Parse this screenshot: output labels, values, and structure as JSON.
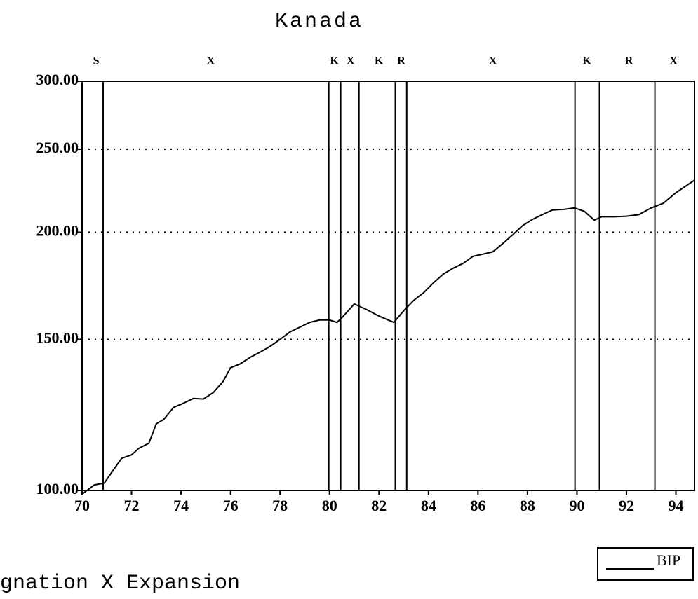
{
  "chart_data": {
    "type": "line",
    "title": "Kanada",
    "series": [
      {
        "name": "BIP",
        "color": "#000000",
        "x": [
          1970.0,
          1970.5,
          1970.9,
          1971.3,
          1971.6,
          1972.0,
          1972.3,
          1972.7,
          1973.0,
          1973.3,
          1973.7,
          1974.0,
          1974.5,
          1974.9,
          1975.3,
          1975.7,
          1976.0,
          1976.4,
          1976.8,
          1977.2,
          1977.6,
          1978.0,
          1978.4,
          1978.8,
          1979.2,
          1979.6,
          1980.0,
          1980.3,
          1980.5,
          1981.0,
          1981.5,
          1982.0,
          1982.6,
          1983.0,
          1983.4,
          1983.8,
          1984.2,
          1984.6,
          1985.0,
          1985.4,
          1985.8,
          1986.2,
          1986.6,
          1987.0,
          1987.4,
          1987.8,
          1988.2,
          1988.6,
          1989.0,
          1989.5,
          1989.9,
          1990.3,
          1990.7,
          1991.0,
          1991.5,
          1992.0,
          1992.5,
          1993.0,
          1993.5,
          1994.0,
          1994.75
        ],
        "values": [
          99,
          101.5,
          102,
          106,
          109,
          110,
          112,
          113.5,
          119.6,
          121,
          125,
          126,
          128,
          127.8,
          130,
          134,
          139,
          140.5,
          143,
          145,
          147.2,
          150,
          153,
          155,
          157,
          158,
          158,
          157,
          159,
          165,
          162.5,
          159.7,
          157,
          162,
          166.6,
          170,
          174.6,
          178.8,
          181.6,
          184,
          187.5,
          188.6,
          189.8,
          194,
          198.6,
          203.6,
          207,
          209.7,
          212.3,
          212.7,
          213.5,
          211.6,
          206.6,
          208.5,
          208.5,
          208.8,
          209.7,
          213.5,
          216.3,
          222.4,
          230
        ]
      }
    ],
    "xlim": [
      1970,
      1994.75
    ],
    "xticks": [
      {
        "value": 1970,
        "label": "70"
      },
      {
        "value": 1972,
        "label": "72"
      },
      {
        "value": 1974,
        "label": "74"
      },
      {
        "value": 1976,
        "label": "76"
      },
      {
        "value": 1978,
        "label": "78"
      },
      {
        "value": 1980,
        "label": "80"
      },
      {
        "value": 1982,
        "label": "82"
      },
      {
        "value": 1984,
        "label": "84"
      },
      {
        "value": 1986,
        "label": "86"
      },
      {
        "value": 1988,
        "label": "88"
      },
      {
        "value": 1990,
        "label": "90"
      },
      {
        "value": 1992,
        "label": "92"
      },
      {
        "value": 1994,
        "label": "94"
      }
    ],
    "ylim": [
      100,
      300
    ],
    "yticks": [
      {
        "value": 100,
        "label": "100.00"
      },
      {
        "value": 150,
        "label": "150.00"
      },
      {
        "value": 200,
        "label": "200.00"
      },
      {
        "value": 250,
        "label": "250.00"
      },
      {
        "value": 300,
        "label": "300.00"
      }
    ],
    "log_scale": true,
    "grid": true,
    "regime_breaks": [
      1970.85,
      1979.97,
      1980.45,
      1981.19,
      1982.66,
      1983.12,
      1989.92,
      1990.91,
      1993.15
    ],
    "regime_labels": [
      {
        "text": "S",
        "x": 1970.57
      },
      {
        "text": "X",
        "x": 1975.2
      },
      {
        "text": "K",
        "x": 1980.2
      },
      {
        "text": "X",
        "x": 1980.85
      },
      {
        "text": "K",
        "x": 1982.0
      },
      {
        "text": "R",
        "x": 1982.9
      },
      {
        "text": "X",
        "x": 1986.6
      },
      {
        "text": "K",
        "x": 1990.4
      },
      {
        "text": "R",
        "x": 1992.1
      },
      {
        "text": "X",
        "x": 1993.9
      }
    ],
    "legend": "bottom-right",
    "footnote": "gnation X Expansion"
  }
}
